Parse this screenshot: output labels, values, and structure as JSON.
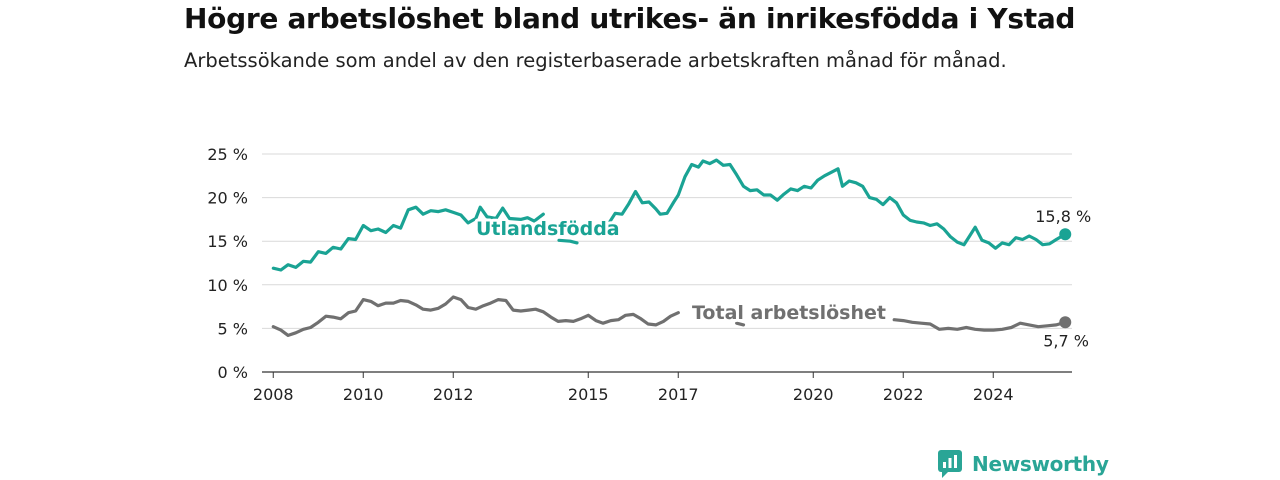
{
  "title": "Högre arbetslöshet bland utrikes- än inrikesfödda i Ystad",
  "subtitle": "Arbetssökande som andel av den registerbaserade arbetskraften månad för månad.",
  "brand": {
    "name": "Newsworthy",
    "icon": "newsworthy-logo-icon",
    "color": "#2aa596"
  },
  "chart_data": {
    "type": "line",
    "title": "",
    "xlabel": "",
    "ylabel": "",
    "ylim": [
      0,
      25
    ],
    "xlim": [
      2007.75,
      2025.75
    ],
    "grid": true,
    "y_ticks": [
      {
        "value": 0,
        "label": "0 %"
      },
      {
        "value": 5,
        "label": "5 %"
      },
      {
        "value": 10,
        "label": "10 %"
      },
      {
        "value": 15,
        "label": "15 %"
      },
      {
        "value": 20,
        "label": "20 %"
      },
      {
        "value": 25,
        "label": "25 %"
      }
    ],
    "x_ticks": [
      {
        "value": 2008,
        "label": "2008"
      },
      {
        "value": 2010,
        "label": "2010"
      },
      {
        "value": 2012,
        "label": "2012"
      },
      {
        "value": 2015,
        "label": "2015"
      },
      {
        "value": 2017,
        "label": "2017"
      },
      {
        "value": 2020,
        "label": "2020"
      },
      {
        "value": 2022,
        "label": "2022"
      },
      {
        "value": 2024,
        "label": "2024"
      }
    ],
    "series": [
      {
        "name": "Utlandsfödda",
        "color": "#1aa394",
        "end_label": "15,8 %",
        "points": [
          [
            2008.0,
            11.9
          ],
          [
            2008.17,
            11.7
          ],
          [
            2008.33,
            12.3
          ],
          [
            2008.5,
            12.0
          ],
          [
            2008.67,
            12.7
          ],
          [
            2008.83,
            12.6
          ],
          [
            2009.0,
            13.8
          ],
          [
            2009.17,
            13.6
          ],
          [
            2009.33,
            14.3
          ],
          [
            2009.5,
            14.1
          ],
          [
            2009.67,
            15.3
          ],
          [
            2009.83,
            15.2
          ],
          [
            2010.0,
            16.8
          ],
          [
            2010.17,
            16.2
          ],
          [
            2010.33,
            16.4
          ],
          [
            2010.5,
            16.0
          ],
          [
            2010.67,
            16.8
          ],
          [
            2010.83,
            16.5
          ],
          [
            2011.0,
            18.6
          ],
          [
            2011.17,
            18.9
          ],
          [
            2011.33,
            18.1
          ],
          [
            2011.5,
            18.5
          ],
          [
            2011.67,
            18.4
          ],
          [
            2011.83,
            18.6
          ],
          [
            2012.0,
            18.3
          ],
          [
            2012.17,
            18.0
          ],
          [
            2012.33,
            17.1
          ],
          [
            2012.5,
            17.6
          ],
          [
            2012.6,
            18.9
          ],
          [
            2012.75,
            17.8
          ],
          [
            2012.95,
            17.6
          ],
          [
            2013.1,
            18.8
          ],
          [
            2013.25,
            17.6
          ],
          [
            2013.5,
            17.5
          ],
          [
            2013.65,
            17.7
          ],
          [
            2013.8,
            17.3
          ],
          [
            2014.0,
            18.1
          ],
          [
            2014.35,
            15.1
          ],
          [
            2014.6,
            15.0
          ],
          [
            2014.75,
            14.8
          ],
          [
            2015.3,
            16.4
          ],
          [
            2015.45,
            17.0
          ],
          [
            2015.6,
            18.2
          ],
          [
            2015.75,
            18.1
          ],
          [
            2015.9,
            19.3
          ],
          [
            2016.05,
            20.7
          ],
          [
            2016.2,
            19.4
          ],
          [
            2016.35,
            19.5
          ],
          [
            2016.5,
            18.7
          ],
          [
            2016.6,
            18.1
          ],
          [
            2016.75,
            18.2
          ],
          [
            2016.9,
            19.5
          ],
          [
            2017.0,
            20.3
          ],
          [
            2017.15,
            22.4
          ],
          [
            2017.3,
            23.8
          ],
          [
            2017.45,
            23.5
          ],
          [
            2017.55,
            24.2
          ],
          [
            2017.7,
            23.9
          ],
          [
            2017.85,
            24.3
          ],
          [
            2018.0,
            23.7
          ],
          [
            2018.15,
            23.8
          ],
          [
            2018.3,
            22.6
          ],
          [
            2018.45,
            21.3
          ],
          [
            2018.6,
            20.8
          ],
          [
            2018.75,
            20.9
          ],
          [
            2018.9,
            20.3
          ],
          [
            2019.05,
            20.3
          ],
          [
            2019.2,
            19.7
          ],
          [
            2019.35,
            20.4
          ],
          [
            2019.5,
            21.0
          ],
          [
            2019.65,
            20.8
          ],
          [
            2019.8,
            21.3
          ],
          [
            2019.95,
            21.1
          ],
          [
            2020.1,
            22.0
          ],
          [
            2020.25,
            22.5
          ],
          [
            2020.4,
            22.9
          ],
          [
            2020.55,
            23.3
          ],
          [
            2020.65,
            21.3
          ],
          [
            2020.8,
            21.9
          ],
          [
            2020.95,
            21.7
          ],
          [
            2021.1,
            21.3
          ],
          [
            2021.25,
            20.0
          ],
          [
            2021.4,
            19.8
          ],
          [
            2021.55,
            19.2
          ],
          [
            2021.7,
            20.0
          ],
          [
            2021.85,
            19.4
          ],
          [
            2022.0,
            18.0
          ],
          [
            2022.15,
            17.4
          ],
          [
            2022.3,
            17.2
          ],
          [
            2022.45,
            17.1
          ],
          [
            2022.6,
            16.8
          ],
          [
            2022.75,
            17.0
          ],
          [
            2022.9,
            16.4
          ],
          [
            2023.05,
            15.5
          ],
          [
            2023.2,
            14.9
          ],
          [
            2023.35,
            14.6
          ],
          [
            2023.45,
            15.4
          ],
          [
            2023.6,
            16.6
          ],
          [
            2023.75,
            15.1
          ],
          [
            2023.9,
            14.8
          ],
          [
            2024.05,
            14.2
          ],
          [
            2024.2,
            14.8
          ],
          [
            2024.35,
            14.6
          ],
          [
            2024.5,
            15.4
          ],
          [
            2024.65,
            15.2
          ],
          [
            2024.8,
            15.6
          ],
          [
            2024.95,
            15.2
          ],
          [
            2025.1,
            14.6
          ],
          [
            2025.25,
            14.7
          ],
          [
            2025.4,
            15.2
          ],
          [
            2025.6,
            15.8
          ]
        ]
      },
      {
        "name": "Total arbetslöshet",
        "color": "#707070",
        "end_label": "5,7 %",
        "points": [
          [
            2008.0,
            5.2
          ],
          [
            2008.17,
            4.8
          ],
          [
            2008.33,
            4.2
          ],
          [
            2008.5,
            4.5
          ],
          [
            2008.67,
            4.9
          ],
          [
            2008.83,
            5.1
          ],
          [
            2009.0,
            5.7
          ],
          [
            2009.17,
            6.4
          ],
          [
            2009.33,
            6.3
          ],
          [
            2009.5,
            6.1
          ],
          [
            2009.67,
            6.8
          ],
          [
            2009.83,
            7.0
          ],
          [
            2010.0,
            8.3
          ],
          [
            2010.17,
            8.1
          ],
          [
            2010.33,
            7.6
          ],
          [
            2010.5,
            7.9
          ],
          [
            2010.67,
            7.9
          ],
          [
            2010.83,
            8.2
          ],
          [
            2011.0,
            8.1
          ],
          [
            2011.17,
            7.7
          ],
          [
            2011.33,
            7.2
          ],
          [
            2011.5,
            7.1
          ],
          [
            2011.67,
            7.3
          ],
          [
            2011.83,
            7.8
          ],
          [
            2012.0,
            8.6
          ],
          [
            2012.17,
            8.3
          ],
          [
            2012.33,
            7.4
          ],
          [
            2012.5,
            7.2
          ],
          [
            2012.67,
            7.6
          ],
          [
            2012.83,
            7.9
          ],
          [
            2013.0,
            8.3
          ],
          [
            2013.17,
            8.2
          ],
          [
            2013.33,
            7.1
          ],
          [
            2013.5,
            7.0
          ],
          [
            2013.67,
            7.1
          ],
          [
            2013.83,
            7.2
          ],
          [
            2014.0,
            6.9
          ],
          [
            2014.17,
            6.3
          ],
          [
            2014.33,
            5.8
          ],
          [
            2014.5,
            5.9
          ],
          [
            2014.67,
            5.8
          ],
          [
            2014.83,
            6.1
          ],
          [
            2015.0,
            6.5
          ],
          [
            2015.17,
            5.9
          ],
          [
            2015.33,
            5.6
          ],
          [
            2015.5,
            5.9
          ],
          [
            2015.67,
            6.0
          ],
          [
            2015.83,
            6.5
          ],
          [
            2016.0,
            6.6
          ],
          [
            2016.17,
            6.1
          ],
          [
            2016.33,
            5.5
          ],
          [
            2016.5,
            5.4
          ],
          [
            2016.67,
            5.8
          ],
          [
            2016.83,
            6.4
          ],
          [
            2017.0,
            6.8
          ],
          [
            2018.3,
            5.6
          ],
          [
            2018.45,
            5.4
          ],
          [
            2021.8,
            6.0
          ],
          [
            2022.0,
            5.9
          ],
          [
            2022.2,
            5.7
          ],
          [
            2022.4,
            5.6
          ],
          [
            2022.6,
            5.5
          ],
          [
            2022.8,
            4.9
          ],
          [
            2023.0,
            5.0
          ],
          [
            2023.2,
            4.9
          ],
          [
            2023.4,
            5.1
          ],
          [
            2023.6,
            4.9
          ],
          [
            2023.8,
            4.8
          ],
          [
            2024.0,
            4.8
          ],
          [
            2024.2,
            4.9
          ],
          [
            2024.4,
            5.1
          ],
          [
            2024.6,
            5.6
          ],
          [
            2024.8,
            5.4
          ],
          [
            2025.0,
            5.2
          ],
          [
            2025.2,
            5.3
          ],
          [
            2025.4,
            5.4
          ],
          [
            2025.6,
            5.7
          ]
        ]
      }
    ]
  }
}
